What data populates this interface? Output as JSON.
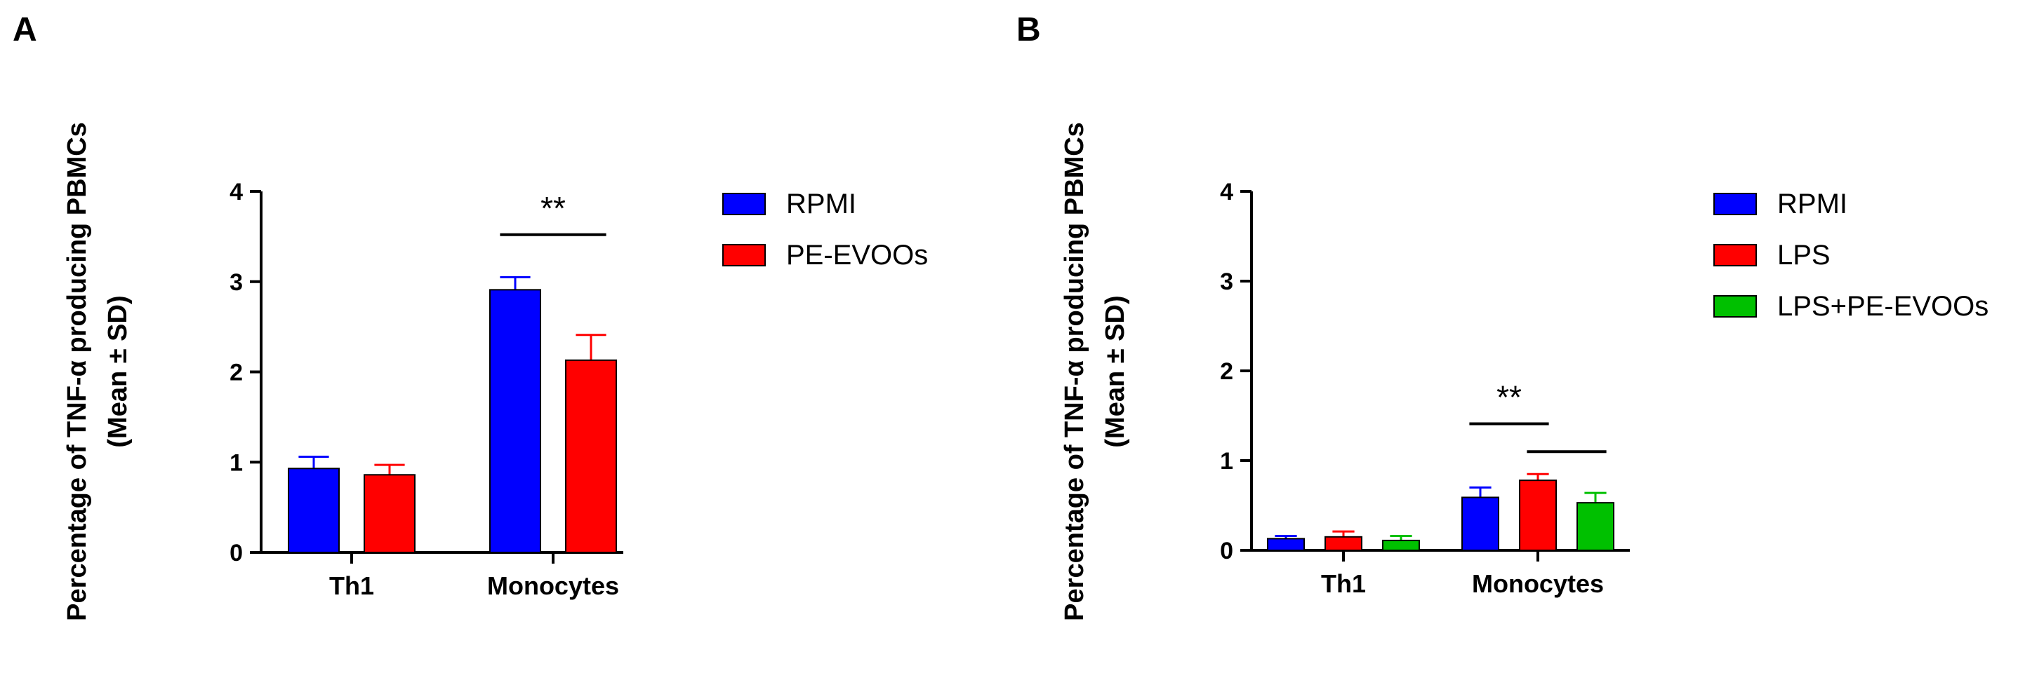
{
  "chart_data": [
    {
      "panel": "A",
      "type": "bar",
      "ylabel_line1": "Percentage of  TNF-α producing PBMCs",
      "ylabel_line2": "(Mean ± SD)",
      "ylim": [
        0,
        4
      ],
      "yticks": [
        "0",
        "1",
        "2",
        "3",
        "4"
      ],
      "categories": [
        "Th1",
        "Monocytes"
      ],
      "series": [
        {
          "name": "RPMI",
          "color": "#0000ff",
          "values": [
            0.93,
            2.91
          ],
          "sd": [
            0.13,
            0.14
          ]
        },
        {
          "name": "PE-EVOOs",
          "color": "#ff0000",
          "values": [
            0.86,
            2.13
          ],
          "sd": [
            0.11,
            0.28
          ]
        }
      ],
      "annotations": [
        {
          "label": "**",
          "category": "Monocytes",
          "from_series": 0,
          "to_series": 1,
          "y": 3.52
        }
      ],
      "legend_position": "right"
    },
    {
      "panel": "B",
      "type": "bar",
      "ylabel_line1": "Percentage of  TNF-α producing PBMCs",
      "ylabel_line2": "(Mean ± SD)",
      "ylim": [
        0,
        4
      ],
      "yticks": [
        "0",
        "1",
        "2",
        "3",
        "4"
      ],
      "categories": [
        "Th1",
        "Monocytes"
      ],
      "series": [
        {
          "name": "RPMI",
          "color": "#0000ff",
          "values": [
            0.13,
            0.59
          ],
          "sd": [
            0.03,
            0.11
          ]
        },
        {
          "name": "LPS",
          "color": "#ff0000",
          "values": [
            0.15,
            0.78
          ],
          "sd": [
            0.06,
            0.07
          ]
        },
        {
          "name": "LPS+PE-EVOOs",
          "color": "#00c000",
          "values": [
            0.11,
            0.53
          ],
          "sd": [
            0.05,
            0.11
          ]
        }
      ],
      "annotations": [
        {
          "label": "**",
          "category": "Monocytes",
          "from_series": 0,
          "to_series": 1,
          "y": 1.41
        },
        {
          "label": "",
          "category": "Monocytes",
          "from_series": 1,
          "to_series": 2,
          "y": 1.1
        }
      ],
      "legend_position": "right"
    }
  ]
}
